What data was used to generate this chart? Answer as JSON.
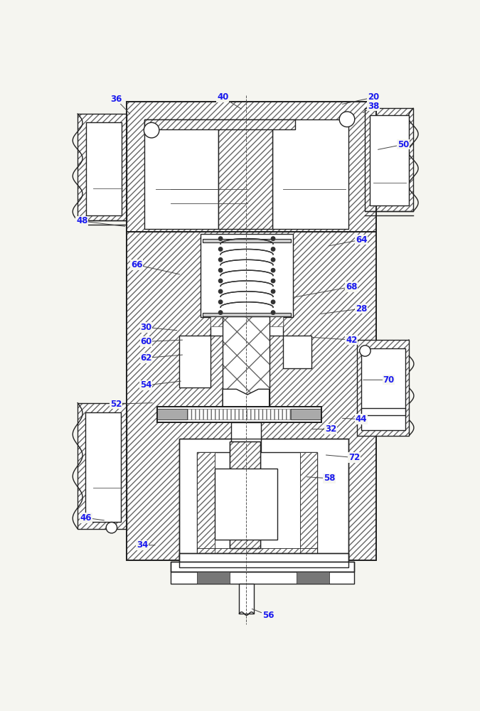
{
  "fig_width": 6.75,
  "fig_height": 10.0,
  "dpi": 100,
  "bg_color": "#f5f5f0",
  "lc": "#222222",
  "hc": "#666666",
  "annotations": [
    [
      "20",
      570,
      22,
      510,
      35
    ],
    [
      "36",
      100,
      25,
      128,
      55
    ],
    [
      "38",
      570,
      38,
      548,
      52
    ],
    [
      "40",
      295,
      22,
      332,
      45
    ],
    [
      "48",
      38,
      248,
      120,
      258
    ],
    [
      "50",
      625,
      108,
      575,
      118
    ],
    [
      "64",
      548,
      282,
      485,
      294
    ],
    [
      "66",
      138,
      328,
      220,
      346
    ],
    [
      "68",
      530,
      368,
      420,
      388
    ],
    [
      "28",
      548,
      408,
      470,
      418
    ],
    [
      "60",
      155,
      468,
      225,
      465
    ],
    [
      "62",
      155,
      498,
      225,
      492
    ],
    [
      "30",
      155,
      442,
      215,
      448
    ],
    [
      "42",
      530,
      465,
      455,
      460
    ],
    [
      "54",
      155,
      548,
      222,
      540
    ],
    [
      "52",
      100,
      582,
      170,
      580
    ],
    [
      "70",
      598,
      538,
      548,
      538
    ],
    [
      "44",
      548,
      610,
      510,
      608
    ],
    [
      "32",
      492,
      628,
      455,
      628
    ],
    [
      "72",
      535,
      680,
      480,
      675
    ],
    [
      "58",
      490,
      718,
      445,
      715
    ],
    [
      "46",
      45,
      790,
      82,
      795
    ],
    [
      "34",
      148,
      840,
      175,
      840
    ],
    [
      "56",
      378,
      968,
      345,
      955
    ]
  ]
}
